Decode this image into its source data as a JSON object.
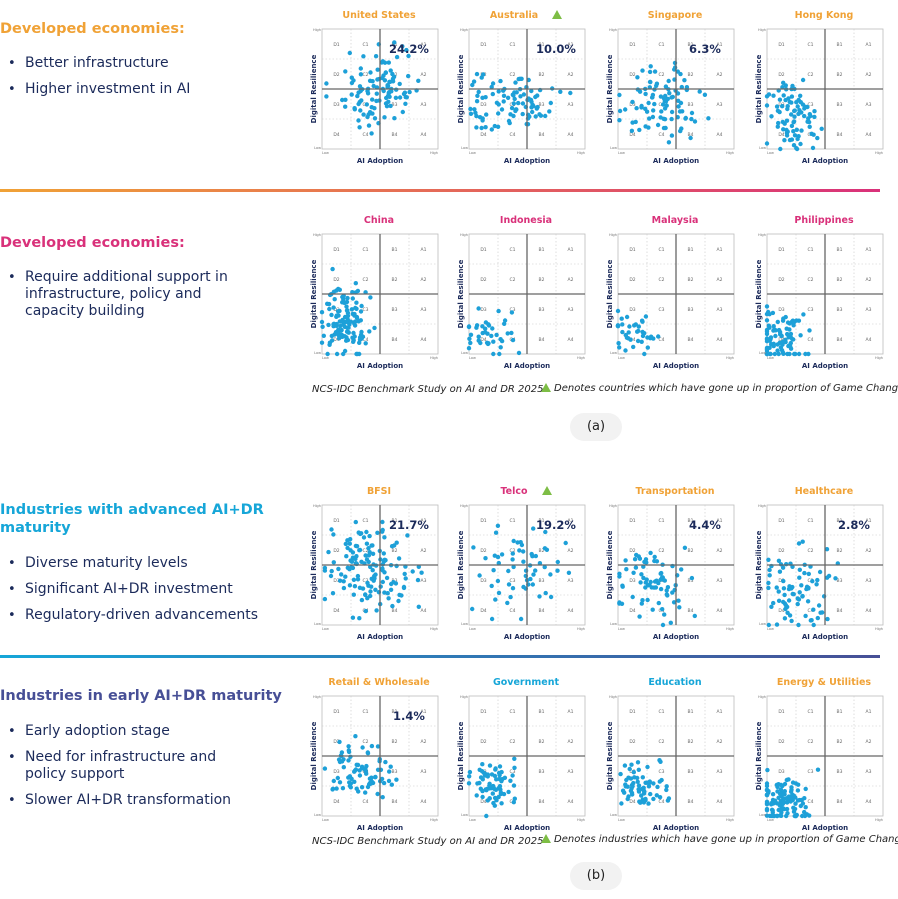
{
  "colors": {
    "orange": "#f0a236",
    "magenta": "#d9317a",
    "cyan": "#16a6d8",
    "indigo": "#474f96",
    "navy": "#1b2a5a",
    "dot": "#1da0d8",
    "up_marker": "#7dbd45"
  },
  "sections": [
    {
      "title": "Developed economies:",
      "bullets": [
        "Better infrastructure",
        "Higher investment in AI"
      ]
    },
    {
      "title": "Developed economies:",
      "bullets": [
        "Require additional support in infrastructure, policy and capacity building"
      ]
    },
    {
      "title": "Industries with advanced AI+DR maturity",
      "bullets": [
        "Diverse maturity levels",
        "Significant AI+DR investment",
        "Regulatory-driven advancements"
      ]
    },
    {
      "title": "Industries in early AI+DR maturity",
      "bullets": [
        "Early adoption stage",
        "Need for infrastructure and policy support",
        "Slower AI+DR transformation"
      ]
    }
  ],
  "figure_a": {
    "source": "NCS-IDC Benchmark Study on AI and DR 2025",
    "note": "Denotes countries which have gone up in proportion of Game Changers",
    "label": "(a)"
  },
  "figure_b": {
    "source": "NCS-IDC Benchmark Study on AI and DR 2025",
    "note": "Denotes industries which have gone up in proportion of Game Changers",
    "label": "(b)"
  },
  "chart_data": {
    "type": "scatter",
    "xlabel": "AI Adoption",
    "ylabel": "Digital Resilience",
    "x_ticks": [
      "Low",
      "High"
    ],
    "y_ticks": [
      "Low",
      "High"
    ],
    "xlim": [
      0,
      4
    ],
    "ylim": [
      0,
      4
    ],
    "grid": true,
    "quadrant_labels": [
      [
        "D1",
        "C1",
        "B1",
        "A1"
      ],
      [
        "D2",
        "C2",
        "B2",
        "A2"
      ],
      [
        "D3",
        "C3",
        "B3",
        "A3"
      ],
      [
        "D4",
        "C4",
        "B4",
        "A4"
      ]
    ],
    "panels": [
      {
        "title": "United States",
        "title_color": "orange",
        "up": false,
        "game_changers": "24.2%",
        "count": 110,
        "spread": {
          "x": [
            0.15,
            3.9
          ],
          "y": [
            0.1,
            3.9
          ]
        },
        "center": [
          1.9,
          2.0
        ]
      },
      {
        "title": "Australia",
        "title_color": "orange",
        "up": true,
        "game_changers": "10.0%",
        "count": 95,
        "spread": {
          "x": [
            0.05,
            3.8
          ],
          "y": [
            0.1,
            2.9
          ]
        },
        "center": [
          1.4,
          1.5
        ]
      },
      {
        "title": "Singapore",
        "title_color": "orange",
        "up": false,
        "game_changers": "6.3%",
        "count": 95,
        "spread": {
          "x": [
            0.05,
            3.7
          ],
          "y": [
            0.1,
            3.3
          ]
        },
        "center": [
          1.5,
          1.5
        ]
      },
      {
        "title": "Hong Kong",
        "title_color": "orange",
        "up": false,
        "game_changers": null,
        "count": 85,
        "spread": {
          "x": [
            0.0,
            2.2
          ],
          "y": [
            0.0,
            2.8
          ]
        },
        "center": [
          0.8,
          1.1
        ]
      },
      {
        "title": "China",
        "title_color": "magenta",
        "up": false,
        "game_changers": null,
        "count": 130,
        "spread": {
          "x": [
            0.0,
            2.0
          ],
          "y": [
            0.0,
            3.0
          ]
        },
        "center": [
          0.8,
          1.1
        ]
      },
      {
        "title": "Indonesia",
        "title_color": "magenta",
        "up": false,
        "game_changers": null,
        "count": 40,
        "spread": {
          "x": [
            0.0,
            1.9
          ],
          "y": [
            0.0,
            2.0
          ]
        },
        "center": [
          0.6,
          0.7
        ]
      },
      {
        "title": "Malaysia",
        "title_color": "magenta",
        "up": false,
        "game_changers": null,
        "count": 40,
        "spread": {
          "x": [
            0.0,
            1.9
          ],
          "y": [
            0.0,
            1.8
          ]
        },
        "center": [
          0.6,
          0.7
        ]
      },
      {
        "title": "Philippines",
        "title_color": "magenta",
        "up": false,
        "game_changers": null,
        "count": 90,
        "spread": {
          "x": [
            0.0,
            1.9
          ],
          "y": [
            0.0,
            1.8
          ]
        },
        "center": [
          0.5,
          0.5
        ]
      },
      {
        "title": "BFSI",
        "title_color": "orange",
        "up": false,
        "game_changers": "21.7%",
        "count": 140,
        "spread": {
          "x": [
            0.1,
            4.0
          ],
          "y": [
            0.1,
            3.8
          ]
        },
        "center": [
          1.6,
          1.9
        ]
      },
      {
        "title": "Telco",
        "title_color": "magenta",
        "up": true,
        "game_changers": "19.2%",
        "count": 60,
        "spread": {
          "x": [
            0.0,
            3.8
          ],
          "y": [
            0.2,
            3.8
          ]
        },
        "center": [
          1.8,
          1.8
        ]
      },
      {
        "title": "Transportation",
        "title_color": "orange",
        "up": false,
        "game_changers": "4.4%",
        "count": 75,
        "spread": {
          "x": [
            0.05,
            2.9
          ],
          "y": [
            0.0,
            3.0
          ]
        },
        "center": [
          1.1,
          1.3
        ]
      },
      {
        "title": "Healthcare",
        "title_color": "orange",
        "up": false,
        "game_changers": "2.8%",
        "count": 80,
        "spread": {
          "x": [
            0.05,
            2.9
          ],
          "y": [
            0.0,
            3.0
          ]
        },
        "center": [
          1.0,
          1.1
        ]
      },
      {
        "title": "Retail & Wholesale",
        "title_color": "orange",
        "up": false,
        "game_changers": "1.4%",
        "count": 80,
        "spread": {
          "x": [
            0.1,
            3.0
          ],
          "y": [
            0.0,
            2.7
          ]
        },
        "center": [
          1.4,
          1.5
        ]
      },
      {
        "title": "Government",
        "title_color": "cyan",
        "up": false,
        "game_changers": null,
        "count": 70,
        "spread": {
          "x": [
            0.0,
            1.9
          ],
          "y": [
            0.0,
            2.2
          ]
        },
        "center": [
          0.8,
          1.0
        ]
      },
      {
        "title": "Education",
        "title_color": "cyan",
        "up": false,
        "game_changers": null,
        "count": 65,
        "spread": {
          "x": [
            0.0,
            2.0
          ],
          "y": [
            0.0,
            2.0
          ]
        },
        "center": [
          0.8,
          1.0
        ]
      },
      {
        "title": "Energy & Utilities",
        "title_color": "orange",
        "up": false,
        "game_changers": null,
        "count": 110,
        "spread": {
          "x": [
            0.0,
            2.0
          ],
          "y": [
            0.0,
            1.8
          ]
        },
        "center": [
          0.5,
          0.5
        ]
      }
    ]
  }
}
